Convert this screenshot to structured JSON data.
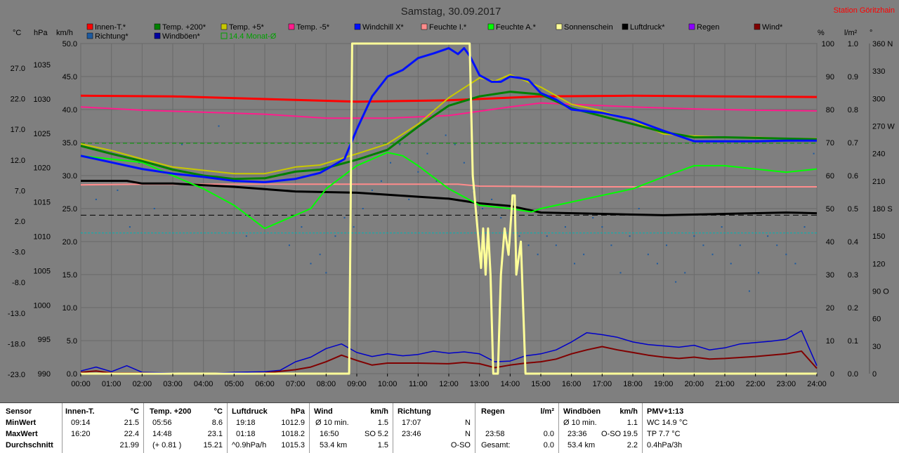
{
  "chart_data": {
    "type": "line",
    "title": "Samstag, 30.09.2017",
    "station": "Station Göritzhain",
    "legend_row1": [
      {
        "name": "Innen-T.*",
        "color": "#ff0000"
      },
      {
        "name": "Temp. +200*",
        "color": "#008000"
      },
      {
        "name": "Temp. +5*",
        "color": "#c8c800"
      },
      {
        "name": "Temp. -5*",
        "color": "#ff1c8c"
      },
      {
        "name": "Windchill X*",
        "color": "#0010ff"
      },
      {
        "name": "Feuchte I.*",
        "color": "#ff8c8c"
      },
      {
        "name": "Feuchte A.*",
        "color": "#00ff00"
      },
      {
        "name": "Sonnenschein",
        "color": "#ffff99"
      },
      {
        "name": "Luftdruck*",
        "color": "#000000"
      },
      {
        "name": "Regen",
        "color": "#8c00ff"
      },
      {
        "name": "Wind*",
        "color": "#800000"
      }
    ],
    "legend_row2": [
      {
        "name": "Richtung*",
        "color": "#1c5aa0"
      },
      {
        "name": "Windböen*",
        "color": "#0000a0"
      },
      {
        "name": "14.4 Monat-Ø",
        "color": "#00a000"
      }
    ],
    "axis_units": {
      "c": "°C",
      "hpa": "hPa",
      "kmh": "km/h",
      "pct": "%",
      "lm2": "l/m²",
      "deg": "°"
    },
    "axis_c_ticks": [
      "27.0",
      "22.0",
      "17.0",
      "12.0",
      "7.0",
      "2.0",
      "-3.0",
      "-8.0",
      "-13.0",
      "-18.0",
      "-23.0"
    ],
    "axis_hpa_ticks": [
      "1035",
      "1030",
      "1025",
      "1020",
      "1015",
      "1010",
      "1005",
      "1000",
      "995",
      "990"
    ],
    "axis_kmh_ticks": [
      "50.0",
      "45.0",
      "40.0",
      "35.0",
      "30.0",
      "25.0",
      "20.0",
      "15.0",
      "10.0",
      "5.0",
      "0.0"
    ],
    "axis_pct_ticks": [
      "100",
      "90",
      "80",
      "70",
      "60",
      "50",
      "40",
      "30",
      "20",
      "10",
      "0"
    ],
    "axis_lm2_ticks": [
      "1.0",
      "0.9",
      "0.8",
      "0.7",
      "0.6",
      "0.5",
      "0.4",
      "0.3",
      "0.2",
      "0.1",
      "0.0"
    ],
    "axis_deg_ticks": [
      "360 N",
      "330",
      "300",
      "270 W",
      "240",
      "210",
      "180 S",
      "150",
      "120",
      "90 O",
      "60",
      "30",
      "0"
    ],
    "x_ticks": [
      "00:00",
      "01:00",
      "02:00",
      "03:00",
      "04:00",
      "05:00",
      "06:00",
      "07:00",
      "08:00",
      "09:00",
      "10:00",
      "11:00",
      "12:00",
      "13:00",
      "14:00",
      "15:00",
      "16:00",
      "17:00",
      "18:00",
      "19:00",
      "20:00",
      "21:00",
      "22:00",
      "23:00",
      "24:00"
    ],
    "series": [
      {
        "key": "innen",
        "axis": "kmh",
        "color": "#ff0000",
        "width": 3,
        "x": [
          0,
          3,
          6,
          9,
          12,
          15,
          18,
          21,
          24
        ],
        "y": [
          42.1,
          42.0,
          41.6,
          41.2,
          41.4,
          42.0,
          42.1,
          42.0,
          41.9
        ]
      },
      {
        "key": "feuchte_i",
        "axis": "kmh",
        "color": "#ff8c8c",
        "width": 2,
        "x": [
          0,
          2,
          6,
          10,
          12.3,
          13,
          16,
          20,
          24
        ],
        "y": [
          28.6,
          28.7,
          28.7,
          28.7,
          28.7,
          28.4,
          28.3,
          28.3,
          28.3
        ]
      },
      {
        "key": "temp_m5",
        "axis": "kmh",
        "color": "#ff1c8c",
        "width": 2,
        "x": [
          0,
          2,
          4,
          6,
          8,
          10,
          12,
          14,
          15,
          16,
          18,
          20,
          22,
          24
        ],
        "y": [
          40.4,
          39.9,
          39.6,
          39.3,
          38.7,
          38.7,
          39.1,
          40.4,
          41.0,
          40.8,
          40.4,
          40.1,
          39.9,
          39.8
        ]
      },
      {
        "key": "luftdruck",
        "axis": "kmh",
        "color": "#000000",
        "width": 3,
        "x": [
          0,
          1.5,
          2,
          3,
          5,
          7,
          9,
          11,
          12,
          13,
          14,
          15,
          17,
          19,
          21,
          23,
          24
        ],
        "y": [
          29.2,
          29.2,
          28.8,
          28.8,
          28.3,
          27.6,
          27.4,
          26.8,
          26.5,
          25.8,
          25.4,
          24.4,
          24.2,
          24.0,
          24.2,
          24.4,
          24.3
        ]
      },
      {
        "key": "feuchte_a",
        "axis": "kmh",
        "color": "#00ff00",
        "width": 2,
        "x": [
          0,
          2,
          4,
          5,
          6,
          6.5,
          7.5,
          8,
          9,
          10,
          10.5,
          11,
          12,
          13,
          14,
          14.7,
          15,
          16,
          17,
          18,
          19,
          20,
          21,
          22,
          23,
          24
        ],
        "y": [
          33.0,
          32.0,
          28.0,
          25.5,
          22.0,
          23.0,
          25.0,
          28.0,
          31.5,
          33.5,
          33.0,
          31.5,
          28.0,
          25.5,
          25.0,
          24.5,
          25.0,
          26.0,
          27.0,
          28.0,
          29.8,
          31.5,
          31.5,
          31.0,
          30.5,
          31.0
        ]
      },
      {
        "key": "temp5",
        "axis": "kmh",
        "color": "#c8c800",
        "width": 2,
        "x": [
          0,
          1,
          2,
          3,
          4,
          5,
          6,
          7,
          7.8,
          9,
          10,
          11,
          12,
          13,
          13.5,
          14,
          15,
          16,
          17,
          18,
          19,
          20,
          21,
          22,
          23,
          24
        ],
        "y": [
          34.8,
          33.8,
          32.5,
          31.3,
          30.8,
          30.3,
          30.3,
          31.3,
          31.6,
          33.3,
          34.8,
          37.8,
          41.8,
          44.8,
          44.3,
          45.3,
          43.4,
          40.8,
          39.8,
          38.3,
          36.3,
          36.0,
          35.8,
          35.8,
          35.6,
          35.6
        ]
      },
      {
        "key": "temp200",
        "axis": "kmh",
        "color": "#008000",
        "width": 3,
        "x": [
          0,
          1,
          2,
          3,
          4,
          5,
          6,
          7,
          7.8,
          9,
          10,
          11,
          12,
          13,
          14,
          15,
          16,
          17,
          18,
          19,
          20,
          21,
          22,
          23,
          24
        ],
        "y": [
          34.5,
          33.3,
          32.2,
          30.9,
          30.0,
          29.5,
          29.6,
          30.6,
          30.9,
          32.4,
          33.9,
          37.4,
          40.6,
          42.0,
          42.7,
          42.3,
          40.2,
          39.0,
          37.8,
          36.6,
          35.8,
          35.8,
          35.7,
          35.6,
          35.5
        ]
      },
      {
        "key": "windchill",
        "axis": "kmh",
        "color": "#0010ff",
        "width": 3,
        "x": [
          0,
          1,
          2,
          3,
          4,
          5,
          6,
          7,
          7.8,
          8.6,
          9,
          9.5,
          10,
          10.5,
          11,
          11.5,
          12,
          12.3,
          12.5,
          12.7,
          13,
          13.4,
          13.7,
          14,
          14.3,
          14.6,
          15,
          15.5,
          16,
          17,
          18,
          19,
          20,
          21,
          22,
          23,
          24
        ],
        "y": [
          33.0,
          32.0,
          31.0,
          30.3,
          29.8,
          29.2,
          29.0,
          29.5,
          30.4,
          32.5,
          37.0,
          42.0,
          45.0,
          46.0,
          47.8,
          48.5,
          49.3,
          48.4,
          49.3,
          48.0,
          45.2,
          44.2,
          44.2,
          45.0,
          44.8,
          44.5,
          42.5,
          41.5,
          40.0,
          39.5,
          38.5,
          36.8,
          35.2,
          35.2,
          35.2,
          35.3,
          35.3
        ]
      },
      {
        "key": "sonne",
        "axis": "kmh",
        "color": "#ffff99",
        "width": 3,
        "x": [
          0,
          8.75,
          8.85,
          12.68,
          12.78,
          13.05,
          13.12,
          13.2,
          13.28,
          13.36,
          13.45,
          13.6,
          13.7,
          13.82,
          13.95,
          14.08,
          14.15,
          14.2,
          14.35,
          14.5,
          14.62,
          24
        ],
        "y": [
          0,
          0,
          50,
          50,
          30,
          16,
          22,
          15,
          22,
          15,
          0,
          0,
          15,
          22,
          18,
          27,
          27,
          15,
          20,
          0,
          0,
          0
        ]
      }
    ],
    "monthly_avg": {
      "label": "14.4 Monat-Ø",
      "axis": "kmh",
      "y": 34.9
    },
    "ref_line_black": {
      "axis": "kmh",
      "y": 24.0
    },
    "ref_line_cyan": {
      "axis": "kmh",
      "y": 21.3
    },
    "wind_gust": {
      "axis": "kmh",
      "x": [
        0,
        0.5,
        1,
        1.5,
        2,
        3,
        4,
        5,
        6,
        6.5,
        7,
        7.5,
        8,
        8.5,
        9,
        9.5,
        10,
        10.5,
        11,
        11.5,
        12,
        12.5,
        13,
        13.5,
        14,
        14.5,
        15,
        15.5,
        16,
        16.5,
        17,
        17.5,
        18,
        18.5,
        19,
        19.5,
        20,
        20.5,
        21,
        21.5,
        22,
        22.5,
        23,
        23.5,
        24
      ],
      "y": [
        0.4,
        1.0,
        0.3,
        1.2,
        0.2,
        0.1,
        0,
        0.2,
        0.3,
        0.5,
        1.8,
        2.5,
        3.8,
        4.5,
        3.2,
        2.6,
        3.0,
        2.7,
        2.9,
        3.4,
        3.1,
        3.3,
        3.0,
        1.8,
        1.9,
        2.7,
        3.0,
        3.6,
        4.8,
        6.2,
        5.9,
        5.5,
        4.8,
        4.4,
        4.2,
        4.0,
        4.3,
        3.6,
        3.9,
        4.5,
        4.7,
        4.9,
        5.2,
        6.5,
        1.2
      ]
    },
    "wind_avg": {
      "axis": "kmh",
      "x": [
        0,
        0.5,
        1,
        2,
        3,
        4,
        5,
        6,
        7,
        7.5,
        8,
        8.5,
        9,
        9.5,
        10,
        11,
        12,
        12.5,
        13,
        13.5,
        14,
        14.5,
        15,
        15.5,
        16,
        16.5,
        17,
        17.5,
        18,
        18.5,
        19,
        19.5,
        20,
        20.5,
        21,
        22,
        23,
        23.5,
        24
      ],
      "y": [
        0.2,
        0.4,
        0.1,
        0.1,
        0,
        0,
        0,
        0.1,
        0.6,
        1.0,
        1.8,
        2.8,
        2.0,
        1.3,
        1.6,
        1.6,
        1.5,
        1.7,
        1.5,
        0.9,
        1.3,
        1.6,
        1.8,
        2.2,
        3.0,
        3.6,
        4.1,
        3.6,
        3.2,
        2.8,
        2.5,
        2.3,
        2.5,
        2.2,
        2.3,
        2.6,
        3.0,
        3.4,
        0.8
      ]
    },
    "direction_points": {
      "axis": "deg",
      "note": "scatter",
      "x": [
        0.5,
        1.2,
        1.6,
        1.9,
        2.4,
        3.3,
        4.5,
        5.4,
        6.8,
        7.2,
        7.5,
        7.8,
        8.0,
        8.3,
        8.6,
        8.9,
        9.2,
        9.5,
        9.8,
        10.1,
        10.4,
        10.7,
        11.0,
        11.3,
        11.6,
        11.9,
        12.2,
        12.5,
        12.8,
        13.1,
        13.4,
        13.7,
        14.0,
        14.3,
        14.6,
        14.9,
        15.2,
        15.5,
        15.8,
        16.1,
        16.4,
        16.7,
        17.0,
        17.3,
        17.6,
        17.9,
        18.2,
        18.5,
        18.8,
        19.1,
        19.4,
        19.7,
        20.0,
        20.3,
        20.6,
        20.9,
        21.2,
        21.5,
        21.8,
        22.1,
        22.4,
        22.7,
        23.0,
        23.3,
        23.6,
        23.9
      ],
      "y": [
        190,
        200,
        160,
        230,
        180,
        250,
        270,
        150,
        140,
        160,
        120,
        130,
        110,
        150,
        170,
        160,
        180,
        200,
        210,
        230,
        250,
        190,
        220,
        240,
        210,
        260,
        250,
        230,
        200,
        180,
        190,
        170,
        160,
        150,
        140,
        130,
        150,
        140,
        160,
        120,
        130,
        170,
        160,
        140,
        110,
        150,
        180,
        130,
        120,
        140,
        100,
        110,
        150,
        140,
        130,
        160,
        120,
        140,
        90,
        110,
        150,
        140,
        130,
        120,
        160,
        240
      ]
    }
  },
  "summary": {
    "sensor": {
      "header": "Sensor",
      "rows": [
        "MinWert",
        "MaxWert",
        "Durchschnitt"
      ]
    },
    "innen": {
      "header": "Innen-T.",
      "unit": "°C",
      "times": [
        "09:14",
        "16:20",
        ""
      ],
      "values": [
        "21.5",
        "22.4",
        "21.99"
      ]
    },
    "temp200": {
      "header": "Temp. +200",
      "unit": "°C",
      "times": [
        "05:56",
        "14:48",
        "(+ 0.81 )"
      ],
      "values": [
        "8.6",
        "23.1",
        "15.21"
      ]
    },
    "luftdruck": {
      "header": "Luftdruck",
      "unit": "hPa",
      "times": [
        "19:18",
        "01:18",
        "^0.9hPa/h"
      ],
      "values": [
        "1012.9",
        "1018.2",
        "1015.3"
      ]
    },
    "wind": {
      "header": "Wind",
      "unit": "km/h",
      "times": [
        "Ø 10 min.",
        "16:50",
        "53.4 km"
      ],
      "mid": [
        "",
        "SO",
        "",
        ""
      ],
      "values": [
        "1.5",
        "5.2",
        "1.5"
      ]
    },
    "richtung": {
      "header": "Richtung",
      "times": [
        "17:07",
        "23:46",
        ""
      ],
      "values": [
        "N",
        "N",
        "O-SO"
      ]
    },
    "regen": {
      "header": "Regen",
      "unit": "l/m²",
      "times": [
        "",
        "23:58",
        "Gesamt:"
      ],
      "values": [
        "",
        "0.0",
        "0.0"
      ]
    },
    "windboeen": {
      "header": "Windböen",
      "unit": "km/h",
      "times": [
        "Ø 10 min.",
        "23:36",
        "53.4 km"
      ],
      "mid": [
        "",
        "O-SO",
        "",
        ""
      ],
      "values": [
        "1.1",
        "19.5",
        "2.2"
      ]
    },
    "pmv": {
      "header": "PMV+1:13",
      "lines": [
        "WC 14.9 °C",
        "TP 7.7 °C",
        "0.4hPa/3h"
      ]
    }
  }
}
